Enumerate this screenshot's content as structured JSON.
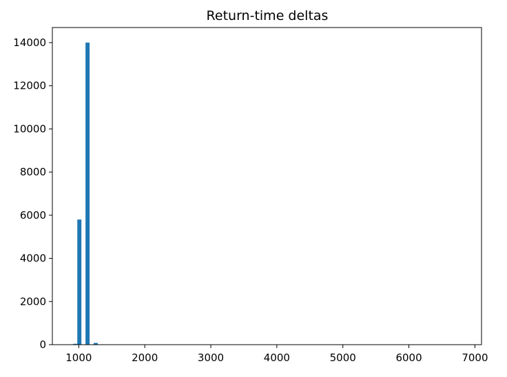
{
  "chart_data": {
    "type": "bar",
    "title": "Return-time deltas",
    "xlabel": "",
    "ylabel": "",
    "xlim": [
      600,
      7100
    ],
    "ylim": [
      0,
      14700
    ],
    "x_ticks": [
      1000,
      2000,
      3000,
      4000,
      5000,
      6000,
      7000
    ],
    "y_ticks": [
      0,
      2000,
      4000,
      6000,
      8000,
      10000,
      12000,
      14000
    ],
    "bin_width": 62,
    "bins": [
      {
        "x": 916,
        "value": 40
      },
      {
        "x": 978,
        "value": 5800
      },
      {
        "x": 1102,
        "value": 14000
      },
      {
        "x": 1226,
        "value": 80
      }
    ],
    "bar_color": "#1f77b4",
    "grid": false,
    "legend": "none"
  }
}
